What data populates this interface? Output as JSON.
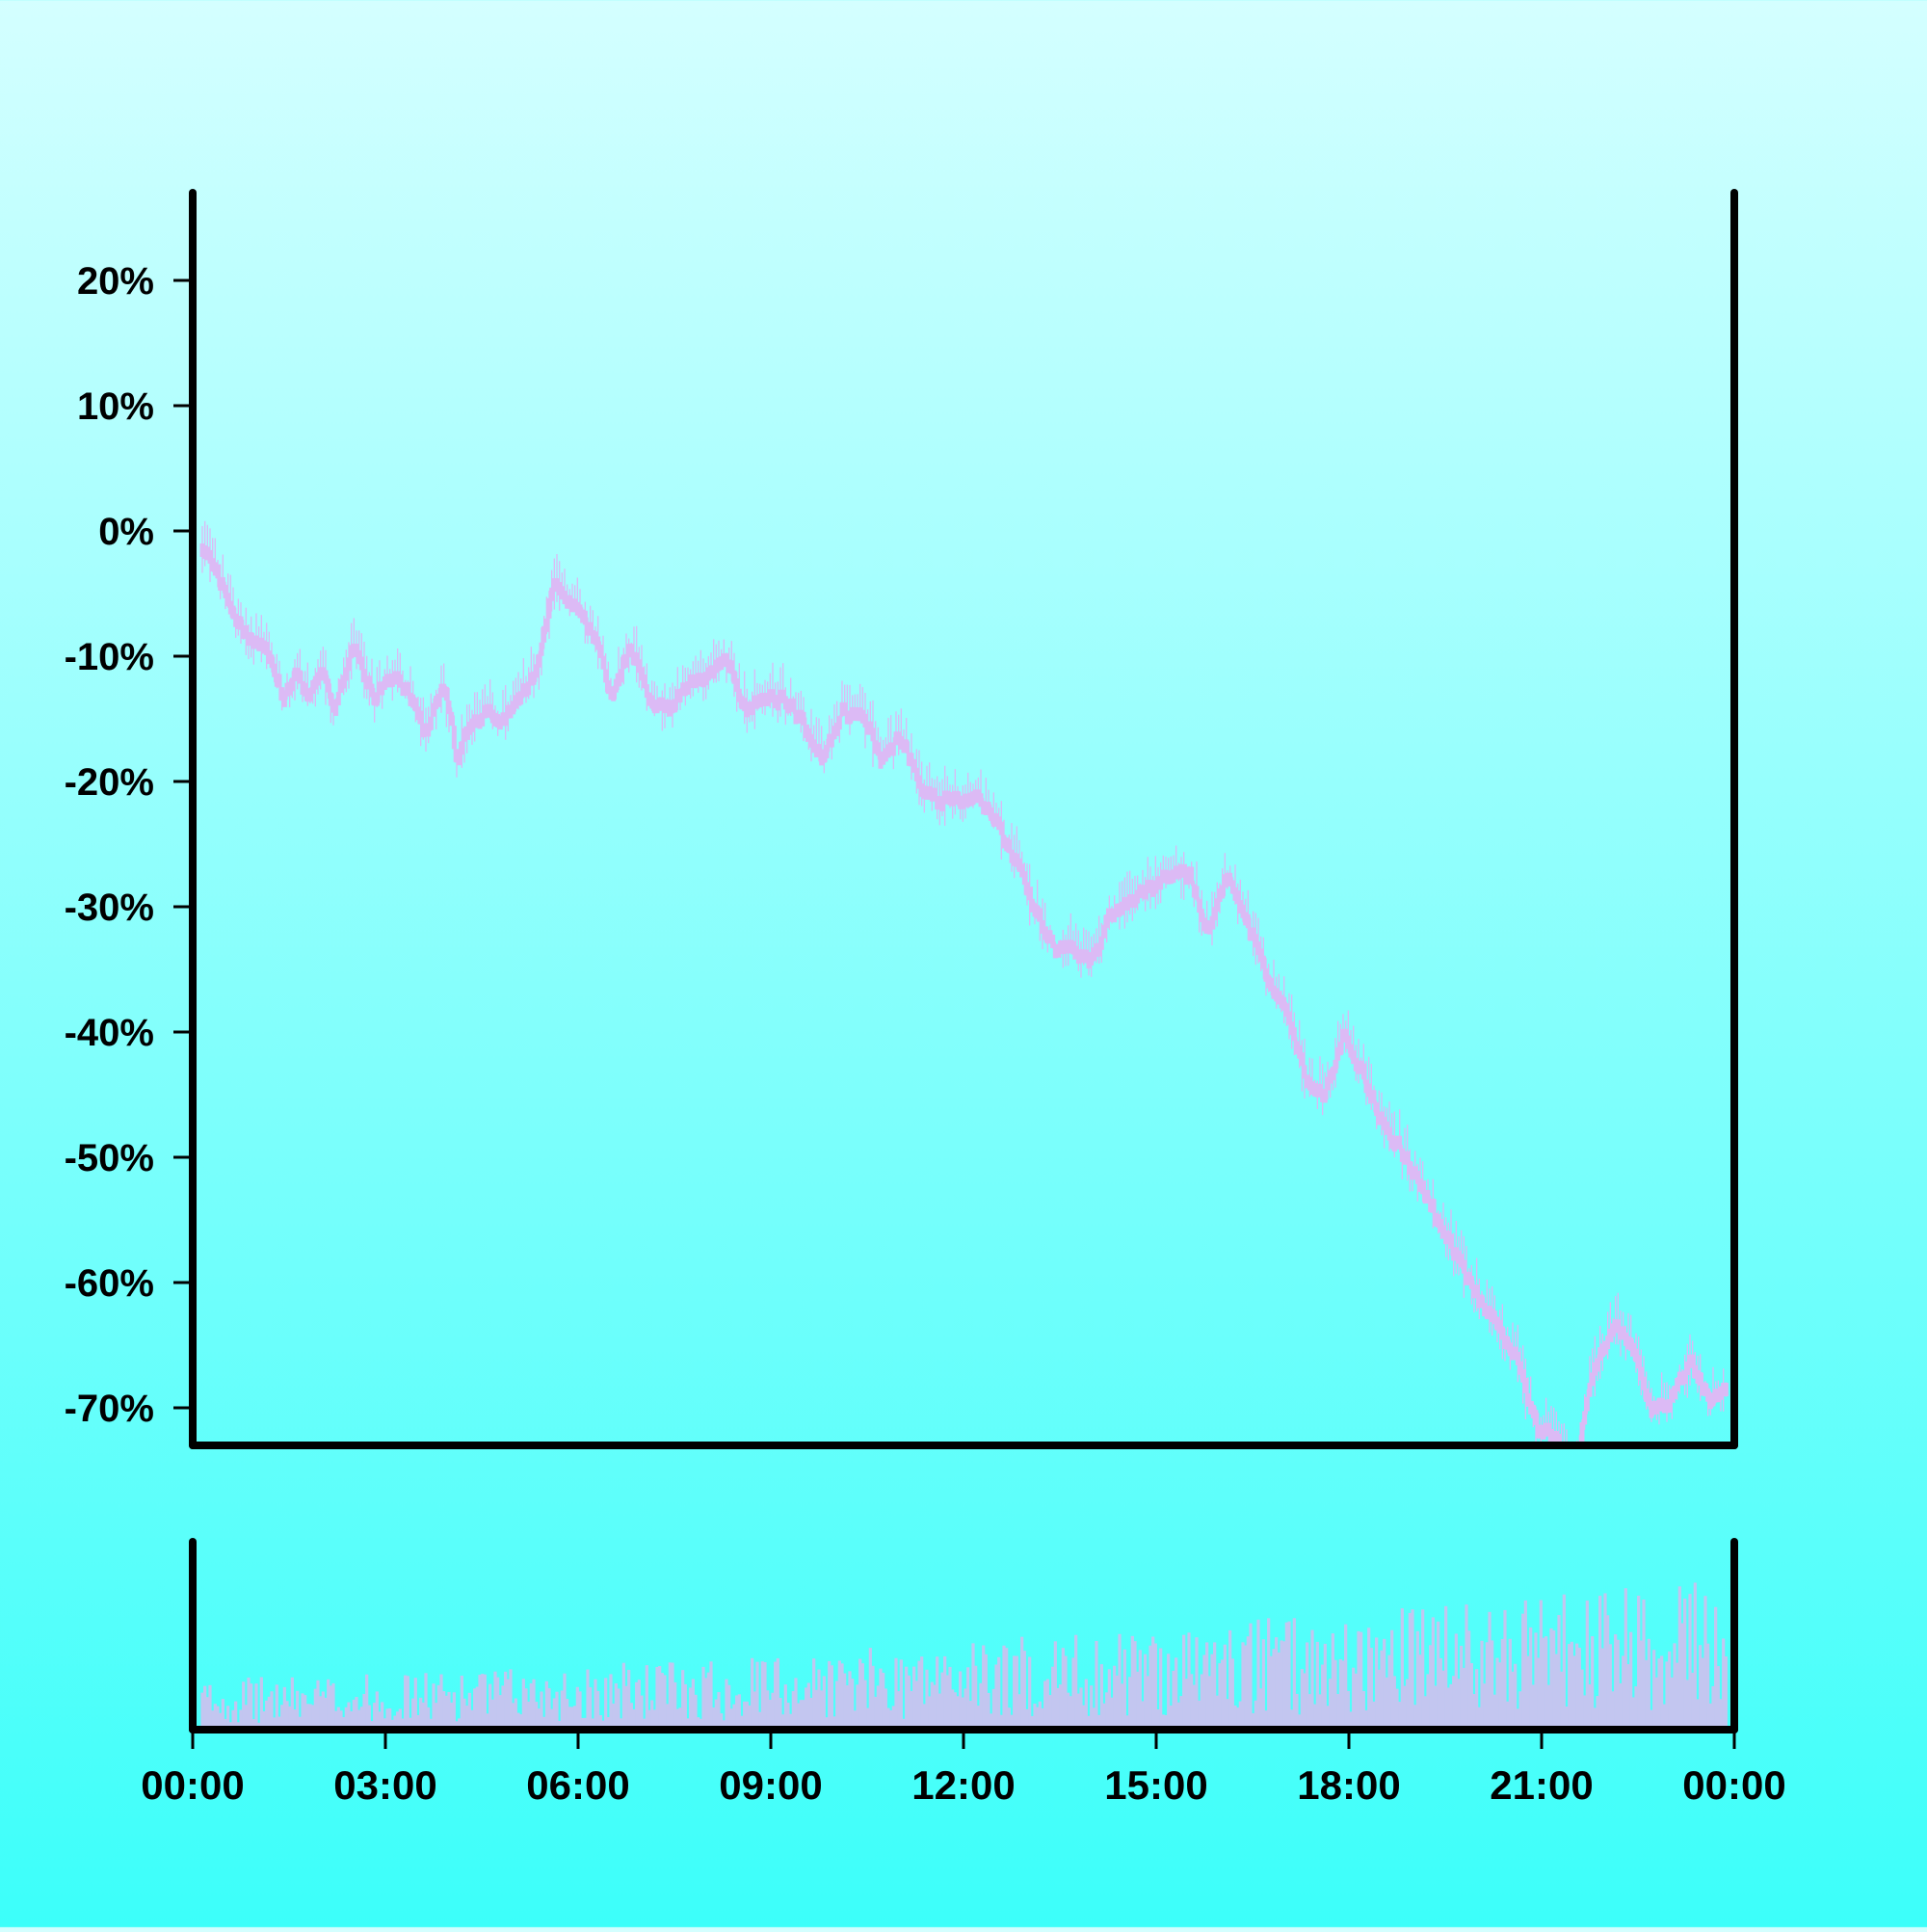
{
  "chart_data": {
    "type": "candlestick",
    "title": "",
    "xlabel": "",
    "ylabel": "",
    "ylim": [
      -73,
      27
    ],
    "y_unit": "%",
    "y_ticks": [
      "20%",
      "10%",
      "0%",
      "-10%",
      "-20%",
      "-30%",
      "-40%",
      "-50%",
      "-60%",
      "-70%"
    ],
    "y_tick_values": [
      20,
      10,
      0,
      -10,
      -20,
      -30,
      -40,
      -50,
      -60,
      -70
    ],
    "x_ticks": [
      "00:00",
      "03:00",
      "06:00",
      "09:00",
      "12:00",
      "15:00",
      "18:00",
      "21:00",
      "00:00"
    ],
    "x_tick_hours": [
      0,
      3,
      6,
      9,
      12,
      15,
      18,
      21,
      24
    ],
    "xlim_hours": [
      0,
      24
    ],
    "grid": false,
    "candle_color": "#dcbaf5",
    "volume_color": "#c3c6f0",
    "background_top": "#d4ffff",
    "background_bottom": "#3cfffa",
    "series": [
      {
        "hours": [
          0.2,
          0.5,
          0.8,
          1.1,
          1.4,
          1.6,
          1.8,
          2.0,
          2.2,
          2.5,
          2.8,
          3.1,
          3.4,
          3.6,
          3.9,
          4.1,
          4.3,
          4.6,
          4.8,
          5.1,
          5.4,
          5.6,
          6.0,
          6.3,
          6.5,
          6.8,
          7.1,
          7.4,
          7.7,
          8.0,
          8.3,
          8.6,
          8.9,
          9.2,
          9.5,
          9.8,
          10.1,
          10.4,
          10.7,
          11.0,
          11.3,
          11.6,
          11.9,
          12.2,
          12.5,
          12.8,
          13.1,
          13.4,
          13.7,
          14.0,
          14.3,
          14.6,
          14.9,
          15.2,
          15.5,
          15.8,
          16.1,
          16.4,
          16.7,
          17.0,
          17.3,
          17.6,
          17.9,
          18.2,
          18.5,
          18.8,
          19.1,
          19.4,
          19.7,
          20.0,
          20.3,
          20.6,
          20.9,
          21.2,
          21.5,
          21.8,
          22.1,
          22.4,
          22.7,
          23.0,
          23.3,
          23.6,
          23.9
        ],
        "close": [
          -1,
          -5,
          -8,
          -9,
          -13,
          -11,
          -13,
          -11,
          -14,
          -9,
          -13,
          -11,
          -13,
          -16,
          -12,
          -18,
          -15,
          -14,
          -15,
          -13,
          -10,
          -4,
          -6,
          -9,
          -13,
          -9,
          -13,
          -14,
          -12,
          -11,
          -10,
          -14,
          -13,
          -13,
          -15,
          -18,
          -14,
          -14,
          -18,
          -16,
          -20,
          -21,
          -21,
          -21,
          -23,
          -26,
          -30,
          -33,
          -33,
          -34,
          -30,
          -29,
          -28,
          -27,
          -27,
          -32,
          -27,
          -31,
          -35,
          -38,
          -43,
          -45,
          -40,
          -43,
          -47,
          -49,
          -52,
          -55,
          -58,
          -61,
          -63,
          -66,
          -71,
          -72,
          -75,
          -67,
          -63,
          -65,
          -70,
          -69,
          -66,
          -69,
          -68
        ]
      }
    ],
    "volume_relative_profile": "low in the morning, rising through the afternoon and evening, highest after 21:00"
  }
}
